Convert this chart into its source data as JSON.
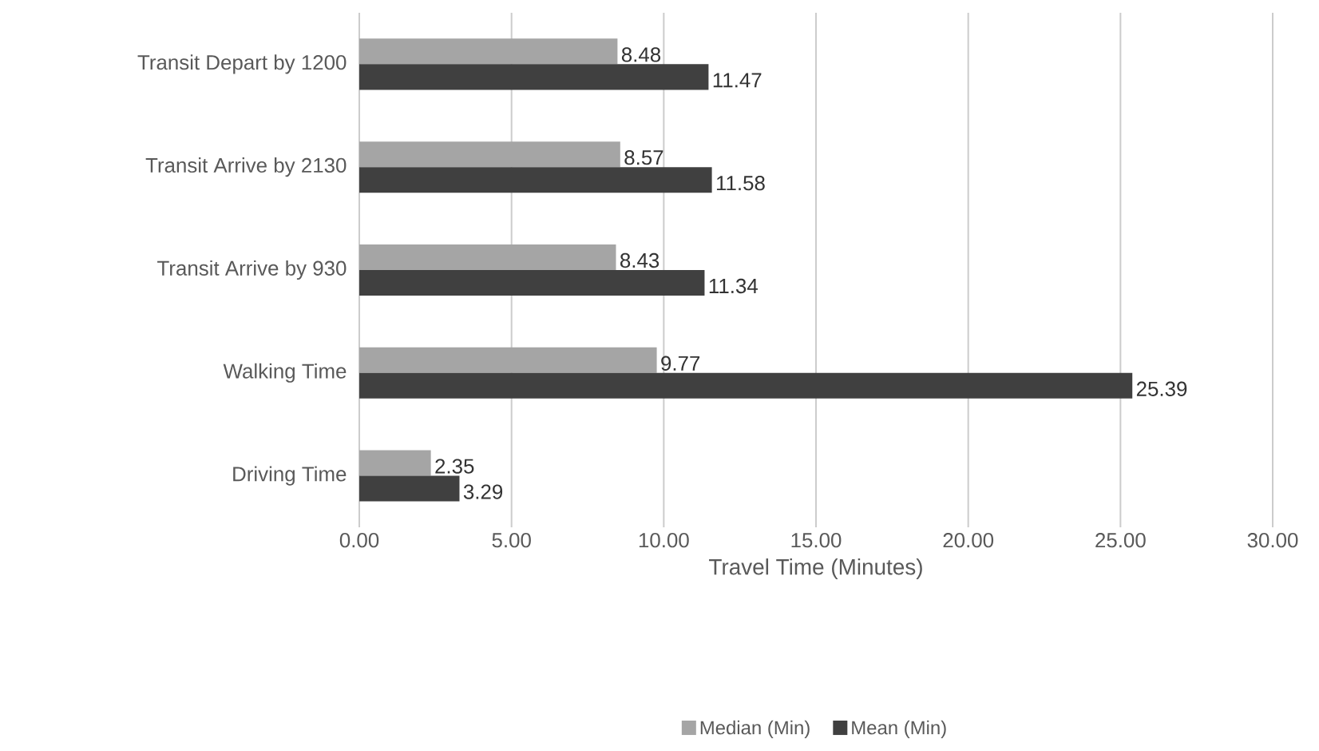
{
  "chart_data": {
    "type": "bar",
    "orientation": "horizontal",
    "xlabel": "Travel Time (Minutes)",
    "categories": [
      "Transit Depart by 1200",
      "Transit Arrive by 2130",
      "Transit Arrive by 930",
      "Walking Time",
      "Driving Time"
    ],
    "series": [
      {
        "name": "Median (Min)",
        "color": "#a5a5a5",
        "values": [
          8.48,
          8.57,
          8.43,
          9.77,
          2.35
        ]
      },
      {
        "name": "Mean (Min)",
        "color": "#404040",
        "values": [
          11.47,
          11.58,
          11.34,
          25.39,
          3.29
        ]
      }
    ],
    "xlim": [
      0,
      30
    ],
    "xticks": [
      {
        "value": 0,
        "label": "0.00"
      },
      {
        "value": 5,
        "label": "5.00"
      },
      {
        "value": 10,
        "label": "10.00"
      },
      {
        "value": 15,
        "label": "15.00"
      },
      {
        "value": 20,
        "label": "20.00"
      },
      {
        "value": 25,
        "label": "25.00"
      },
      {
        "value": 30,
        "label": "30.00"
      }
    ],
    "grid": "x",
    "legend": "bottom",
    "data_labels": true
  }
}
